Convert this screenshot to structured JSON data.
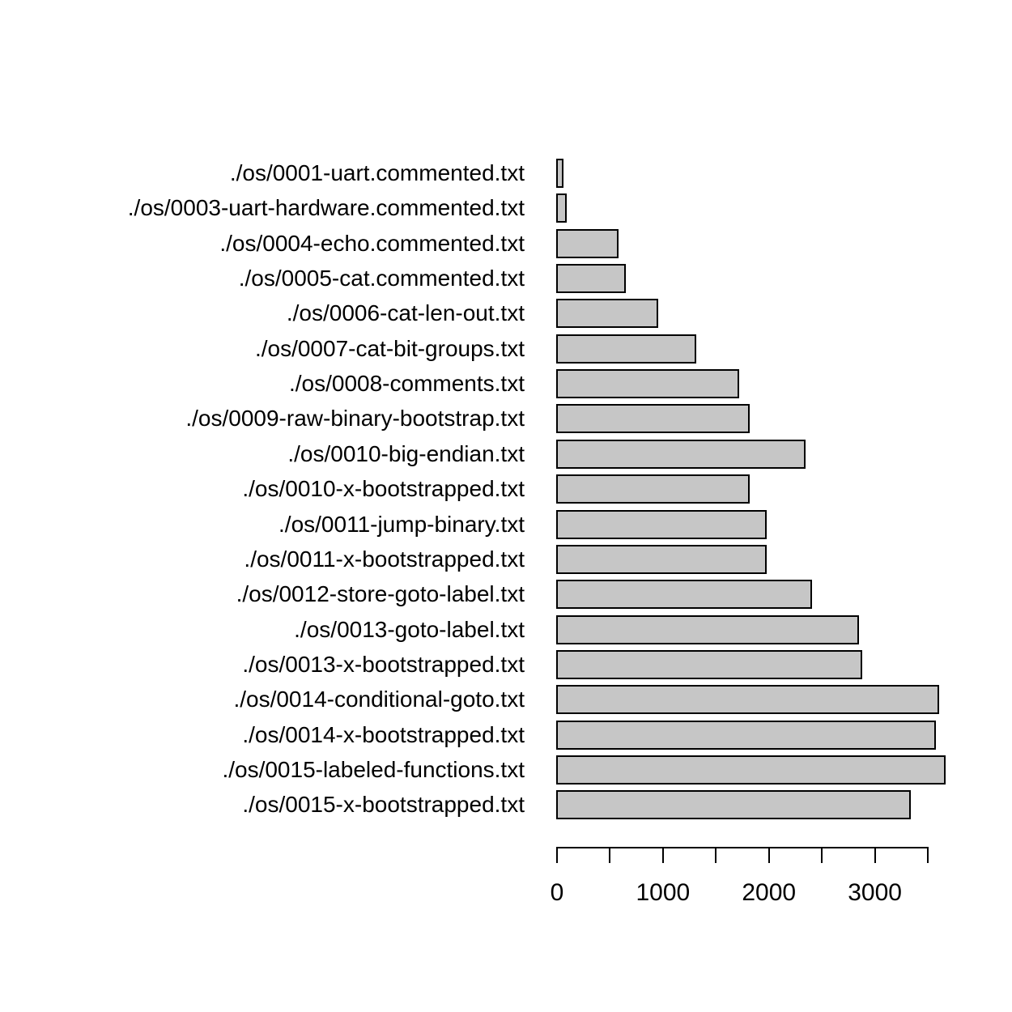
{
  "chart_data": {
    "type": "bar",
    "orientation": "horizontal",
    "title": "",
    "xlabel": "",
    "ylabel": "",
    "categories": [
      "./os/0001-uart.commented.txt",
      "./os/0003-uart-hardware.commented.txt",
      "./os/0004-echo.commented.txt",
      "./os/0005-cat.commented.txt",
      "./os/0006-cat-len-out.txt",
      "./os/0007-cat-bit-groups.txt",
      "./os/0008-comments.txt",
      "./os/0009-raw-binary-bootstrap.txt",
      "./os/0010-big-endian.txt",
      "./os/0010-x-bootstrapped.txt",
      "./os/0011-jump-binary.txt",
      "./os/0011-x-bootstrapped.txt",
      "./os/0012-store-goto-label.txt",
      "./os/0013-goto-label.txt",
      "./os/0013-x-bootstrapped.txt",
      "./os/0014-conditional-goto.txt",
      "./os/0014-x-bootstrapped.txt",
      "./os/0015-labeled-functions.txt",
      "./os/0015-x-bootstrapped.txt"
    ],
    "values": [
      50,
      85,
      570,
      640,
      950,
      1310,
      1710,
      1810,
      2340,
      1810,
      1970,
      1970,
      2400,
      2840,
      2870,
      3600,
      3570,
      3660,
      3330
    ],
    "xlim": [
      0,
      3500
    ],
    "x_ticks": [
      0,
      500,
      1000,
      1500,
      2000,
      2500,
      3000,
      3500
    ],
    "x_tick_labels": [
      "0",
      "",
      "1000",
      "",
      "2000",
      "",
      "3000",
      ""
    ],
    "grid": false,
    "legend": false,
    "colors": {
      "bar_fill": "#c6c6c6",
      "bar_border": "#000000",
      "axis": "#000000",
      "text": "#000000",
      "background": "#ffffff"
    }
  }
}
